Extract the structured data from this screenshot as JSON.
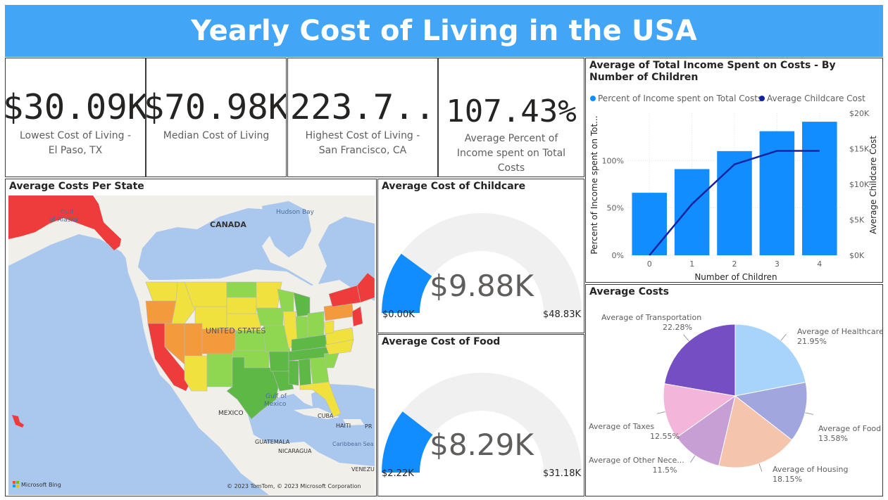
{
  "header": {
    "title": "Yearly Cost of Living in the USA"
  },
  "kpis": [
    {
      "value": "$30.09K",
      "label_line1": "Lowest Cost of Living -",
      "label_line2": "El Paso, TX"
    },
    {
      "value": "$70.98K",
      "label_line1": "Median Cost of Living",
      "label_line2": ""
    },
    {
      "value": "$223.7...",
      "label_line1": "Highest Cost of Living -",
      "label_line2": "San Francisco, CA"
    },
    {
      "value": "107.43%",
      "label_line1": "Average Percent of",
      "label_line2": "Income spent on Total Costs"
    }
  ],
  "map": {
    "title": "Average Costs Per State",
    "labels": {
      "canada": "CANADA",
      "usa": "UNITED STATES",
      "mexico": "MEXICO",
      "gulf_alaska_1": "Gulf",
      "gulf_alaska_2": "of Alaska",
      "hudson": "Hudson Bay",
      "gulf_mexico_1": "Gulf of",
      "gulf_mexico_2": "Mexico",
      "cuba": "CUBA",
      "haiti": "HAITI",
      "pr": "PR",
      "guatemala": "GUATEMALA",
      "nicaragua": "NICARAGUA",
      "caribbean": "Caribbean Sea",
      "venezuela": "VENEZUE",
      "bing": "Microsoft Bing",
      "copyright": "© 2023 TomTom, © 2023 Microsoft Corporation"
    },
    "colors": {
      "ocean": "#aac8ee",
      "land": "#f1efe9",
      "high": "#ee3b3b",
      "upper": "#f39a3d",
      "mid": "#f0e13f",
      "lower": "#8fd651",
      "low": "#5db846"
    }
  },
  "gauges": [
    {
      "title": "Average Cost of Childcare",
      "value_label": "$9.88K",
      "min_label": "$0.00K",
      "max_label": "$48.83K",
      "value": 9.88,
      "min": 0.0,
      "max": 48.83,
      "fill_color": "#118dff",
      "track_color": "#f0f0f0"
    },
    {
      "title": "Average Cost of Food",
      "value_label": "$8.29K",
      "min_label": "$2.22K",
      "max_label": "$31.18K",
      "value": 8.29,
      "min": 2.22,
      "max": 31.18,
      "fill_color": "#118dff",
      "track_color": "#f0f0f0"
    }
  ],
  "chart_data": [
    {
      "type": "bar",
      "title": "Average of Total Income Spent on Costs - By Number of Children",
      "categories": [
        "0",
        "1",
        "2",
        "3",
        "4"
      ],
      "series": [
        {
          "name": "Percent of Income spent on Total Costs",
          "kind": "bar",
          "axis": "left",
          "values": [
            66,
            91,
            110,
            131,
            141
          ],
          "color": "#118dff"
        },
        {
          "name": "Average Childcare Cost",
          "kind": "line",
          "axis": "right",
          "values": [
            0,
            7200,
            12800,
            14700,
            14700
          ],
          "color": "#12239e"
        }
      ],
      "xlabel": "Number of Children",
      "ylabel": "Percent of Income spent on Tot...",
      "y2label": "Average Childcare Cost",
      "ylim": [
        0,
        150
      ],
      "y2lim": [
        0,
        20000
      ],
      "yticks": [
        "0%",
        "50%",
        "100%"
      ],
      "y2ticks": [
        "$0K",
        "$5K",
        "$10K",
        "$15K",
        "$20K"
      ],
      "legend": "top-left",
      "grid": true
    },
    {
      "type": "pie",
      "title": "Average Costs",
      "slices": [
        {
          "name": "Average of Healthcare",
          "label": "Average of Healthcare",
          "percent_label": "21.95%",
          "value": 21.95,
          "color": "#a8d4fc"
        },
        {
          "name": "Average of Food",
          "label": "Average of Food",
          "percent_label": "13.58%",
          "value": 13.58,
          "color": "#a1a6de"
        },
        {
          "name": "Average of Housing",
          "label": "Average of Housing",
          "percent_label": "18.15%",
          "value": 18.15,
          "color": "#f5c4ac"
        },
        {
          "name": "Average of Other Necessities",
          "label": "Average of Other Nece...",
          "percent_label": "11.5%",
          "value": 11.5,
          "color": "#c79fd4"
        },
        {
          "name": "Average of Taxes",
          "label": "Average of Taxes",
          "percent_label": "12.55%",
          "value": 12.55,
          "color": "#f3b6da"
        },
        {
          "name": "Average of Transportation",
          "label": "Average of Transportation",
          "percent_label": "22.28%",
          "value": 22.28,
          "color": "#744ec2"
        }
      ]
    }
  ]
}
